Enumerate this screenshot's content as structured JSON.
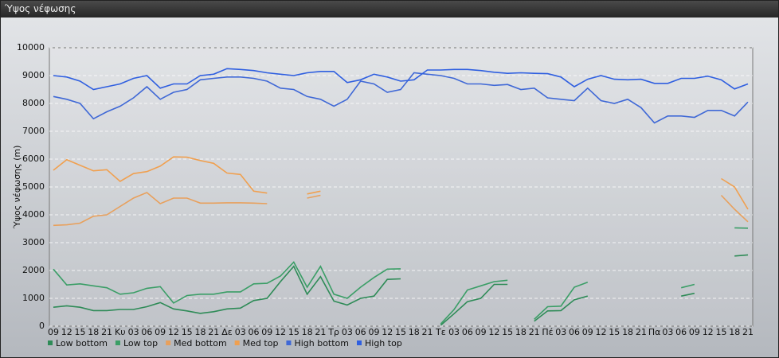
{
  "chart_data": {
    "type": "line",
    "title": "Ύψος νέφωσης",
    "y_label": "Ύψος νέφωσης (m)",
    "categories": [
      "09",
      "12",
      "15",
      "18",
      "21",
      "Κυ",
      "03",
      "06",
      "09",
      "12",
      "15",
      "18",
      "21",
      "Δε",
      "03",
      "06",
      "09",
      "12",
      "15",
      "18",
      "21",
      "Τρ",
      "03",
      "06",
      "09",
      "12",
      "15",
      "18",
      "21",
      "Τε",
      "03",
      "06",
      "09",
      "12",
      "15",
      "18",
      "21",
      "Πέ",
      "03",
      "06",
      "09",
      "12",
      "15",
      "18",
      "21",
      "Πα",
      "03",
      "06",
      "09",
      "12",
      "15",
      "18",
      "21"
    ],
    "ylim": [
      0,
      10000
    ],
    "yticks": [
      0,
      1000,
      2000,
      3000,
      4000,
      5000,
      6000,
      7000,
      8000,
      9000,
      10000
    ],
    "grid": true,
    "series": [
      {
        "name": "Low bottom",
        "color": "#2e8b57",
        "values": [
          680,
          730,
          680,
          560,
          560,
          600,
          600,
          700,
          850,
          620,
          550,
          460,
          520,
          620,
          650,
          920,
          1000,
          1600,
          2150,
          1150,
          1780,
          900,
          760,
          1000,
          1080,
          1680,
          1700,
          null,
          null,
          30,
          450,
          880,
          1000,
          1500,
          1500,
          null,
          180,
          550,
          560,
          950,
          1080,
          null,
          null,
          null,
          null,
          null,
          null,
          1080,
          1180,
          null,
          null,
          2520,
          2560
        ]
      },
      {
        "name": "Low top",
        "color": "#3a9e66",
        "values": [
          2050,
          1480,
          1520,
          1450,
          1380,
          1150,
          1200,
          1360,
          1420,
          830,
          1100,
          1150,
          1150,
          1230,
          1230,
          1520,
          1540,
          1800,
          2300,
          1400,
          2150,
          1150,
          1000,
          1400,
          1750,
          2050,
          2060,
          null,
          null,
          80,
          600,
          1300,
          1450,
          1600,
          1650,
          null,
          250,
          700,
          720,
          1400,
          1580,
          null,
          null,
          null,
          null,
          null,
          null,
          1380,
          1500,
          null,
          null,
          3530,
          3520
        ]
      },
      {
        "name": "Med bottom",
        "color": "#e8a05c",
        "values": [
          3620,
          3640,
          3700,
          3950,
          4000,
          4300,
          4600,
          4800,
          4400,
          4600,
          4600,
          4420,
          4420,
          4430,
          4430,
          4420,
          4400,
          null,
          null,
          4600,
          4700,
          null,
          null,
          null,
          null,
          null,
          null,
          null,
          null,
          null,
          null,
          null,
          null,
          null,
          null,
          null,
          null,
          null,
          null,
          null,
          null,
          null,
          null,
          null,
          null,
          null,
          null,
          null,
          null,
          null,
          4700,
          4200,
          3750
        ]
      },
      {
        "name": "Med top",
        "color": "#f0a050",
        "values": [
          5600,
          5980,
          5780,
          5580,
          5620,
          5200,
          5480,
          5550,
          5750,
          6080,
          6070,
          5950,
          5850,
          5500,
          5450,
          4850,
          4780,
          null,
          null,
          4750,
          4850,
          null,
          null,
          null,
          null,
          null,
          null,
          null,
          null,
          null,
          null,
          null,
          null,
          null,
          null,
          null,
          null,
          null,
          null,
          null,
          null,
          null,
          null,
          null,
          null,
          null,
          null,
          null,
          null,
          null,
          5300,
          5000,
          4200
        ]
      },
      {
        "name": "High bottom",
        "color": "#3f68d6",
        "values": [
          8250,
          8150,
          8000,
          7450,
          7700,
          7900,
          8200,
          8600,
          8150,
          8400,
          8500,
          8850,
          8900,
          8950,
          8950,
          8900,
          8800,
          8550,
          8500,
          8250,
          8150,
          7900,
          8150,
          8800,
          8700,
          8400,
          8500,
          9100,
          9050,
          9000,
          8900,
          8700,
          8700,
          8650,
          8680,
          8500,
          8550,
          8200,
          8150,
          8100,
          8550,
          8100,
          8000,
          8150,
          7850,
          7300,
          7550,
          7550,
          7500,
          7750,
          7750,
          7550,
          8050
        ]
      },
      {
        "name": "High top",
        "color": "#2f5fe0",
        "values": [
          9000,
          8950,
          8800,
          8500,
          8600,
          8700,
          8900,
          9000,
          8550,
          8700,
          8700,
          9000,
          9050,
          9250,
          9220,
          9180,
          9100,
          9050,
          9000,
          9100,
          9150,
          9150,
          8750,
          8850,
          9050,
          8950,
          8800,
          8850,
          9200,
          9200,
          9220,
          9220,
          9180,
          9120,
          9080,
          9100,
          9080,
          9070,
          8950,
          8600,
          8870,
          9000,
          8870,
          8850,
          8870,
          8720,
          8720,
          8900,
          8900,
          8980,
          8850,
          8520,
          8700
        ]
      }
    ]
  }
}
